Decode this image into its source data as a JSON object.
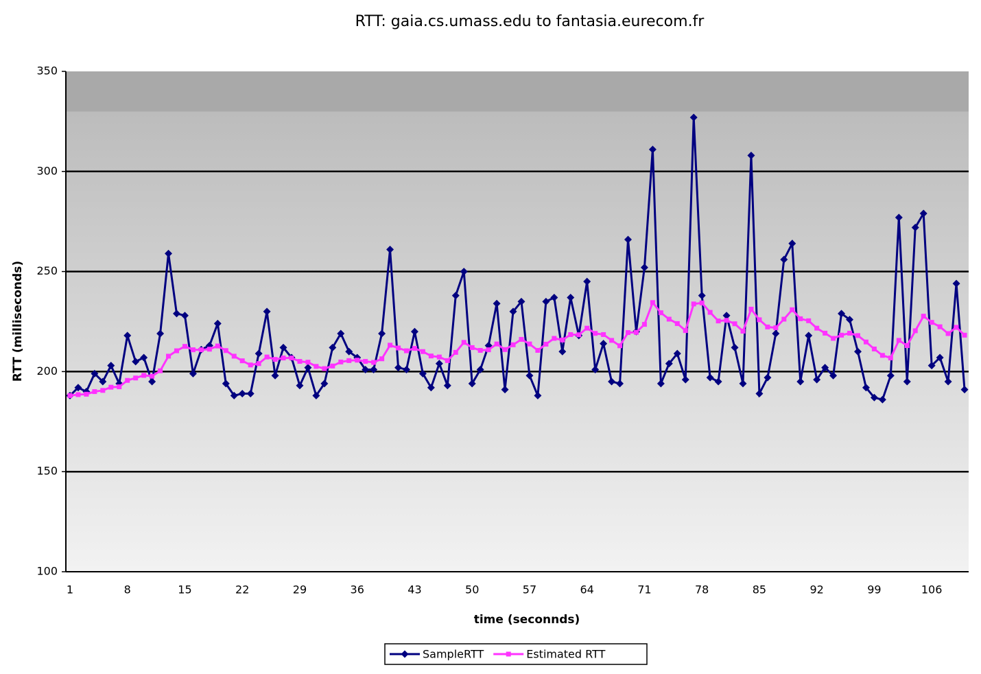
{
  "chart_data": {
    "type": "line",
    "title": "RTT: gaia.cs.umass.edu to fantasia.eurecom.fr",
    "x_label": "time (seconnds)",
    "y_label": "RTT (milliseconds)",
    "categories": [
      "1",
      null,
      null,
      null,
      null,
      null,
      null,
      "8",
      null,
      null,
      null,
      null,
      null,
      null,
      "15",
      null,
      null,
      null,
      null,
      null,
      null,
      "22",
      null,
      null,
      null,
      null,
      null,
      null,
      "29",
      null,
      null,
      null,
      null,
      null,
      null,
      "36",
      null,
      null,
      null,
      null,
      null,
      null,
      "43",
      null,
      null,
      null,
      null,
      null,
      null,
      "50",
      null,
      null,
      null,
      null,
      null,
      null,
      "57",
      null,
      null,
      null,
      null,
      null,
      null,
      "64",
      null,
      null,
      null,
      null,
      null,
      null,
      "71",
      null,
      null,
      null,
      null,
      null,
      null,
      "78",
      null,
      null,
      null,
      null,
      null,
      null,
      "85",
      null,
      null,
      null,
      null,
      null,
      null,
      "92",
      null,
      null,
      null,
      null,
      null,
      null,
      "99",
      null,
      null,
      null,
      null,
      null,
      null,
      "106",
      null,
      null,
      null,
      null
    ],
    "series": [
      {
        "name": "SampleRTT",
        "color": "#000080",
        "marker": "diamond",
        "values": [
          188,
          192,
          190,
          199,
          195,
          203,
          194,
          218,
          205,
          207,
          195,
          219,
          259,
          229,
          228,
          199,
          211,
          213,
          224,
          194,
          188,
          189,
          189,
          209,
          230,
          198,
          212,
          207,
          193,
          202,
          188,
          194,
          212,
          219,
          210,
          207,
          201,
          201,
          219,
          261,
          202,
          201,
          220,
          199,
          192,
          204,
          193,
          238,
          250,
          194,
          201,
          213,
          234,
          191,
          230,
          235,
          198,
          188,
          235,
          237,
          210,
          237,
          218,
          245,
          201,
          214,
          195,
          194,
          266,
          220,
          252,
          311,
          194,
          204,
          209,
          196,
          327,
          238,
          197,
          195,
          228,
          212,
          194,
          308,
          189,
          197,
          219,
          256,
          264,
          195,
          218,
          196,
          202,
          198,
          229,
          226,
          210,
          192,
          187,
          186,
          198,
          277,
          195,
          272,
          279,
          203,
          207,
          195,
          244,
          191
        ]
      },
      {
        "name": "Estimated RTT",
        "color": "#ff33ff",
        "marker": "square",
        "values": [
          188,
          188.5,
          188.7,
          190,
          190.6,
          192.2,
          192.4,
          195.6,
          196.8,
          198.1,
          197.7,
          200.4,
          207.7,
          210.4,
          212.6,
          210.9,
          210.9,
          211.2,
          212.8,
          210.5,
          207.7,
          205.4,
          203.3,
          204,
          207.3,
          206.1,
          206.8,
          206.8,
          205.1,
          204.7,
          202.6,
          201.5,
          202.8,
          204.8,
          205.5,
          205.7,
          205.1,
          204.6,
          206.4,
          213.2,
          211.8,
          210.4,
          211.6,
          210,
          207.8,
          207.3,
          205.5,
          209.6,
          214.6,
          212,
          210.6,
          210.9,
          213.8,
          211,
          213.4,
          216.1,
          213.8,
          210.6,
          213.7,
          216.6,
          215.8,
          218.5,
          218.4,
          221.7,
          219.1,
          218.5,
          215.6,
          212.9,
          219.5,
          219.6,
          223.6,
          234.5,
          229.4,
          226.2,
          224,
          220.5,
          233.8,
          234.3,
          229.6,
          225.3,
          225.6,
          223.9,
          220.2,
          231.2,
          225.9,
          222.3,
          221.9,
          226.2,
          230.9,
          226.4,
          225.4,
          221.7,
          219.2,
          216.6,
          218.2,
          219.2,
          218,
          214.8,
          211.3,
          208.1,
          206.8,
          215.6,
          213,
          220.4,
          227.7,
          224.6,
          222.4,
          219,
          222.1,
          218.2
        ]
      }
    ],
    "ylim": [
      100,
      350
    ],
    "yticks": [
      100,
      150,
      200,
      250,
      300,
      350
    ],
    "grid": true,
    "legend": "bottom"
  }
}
